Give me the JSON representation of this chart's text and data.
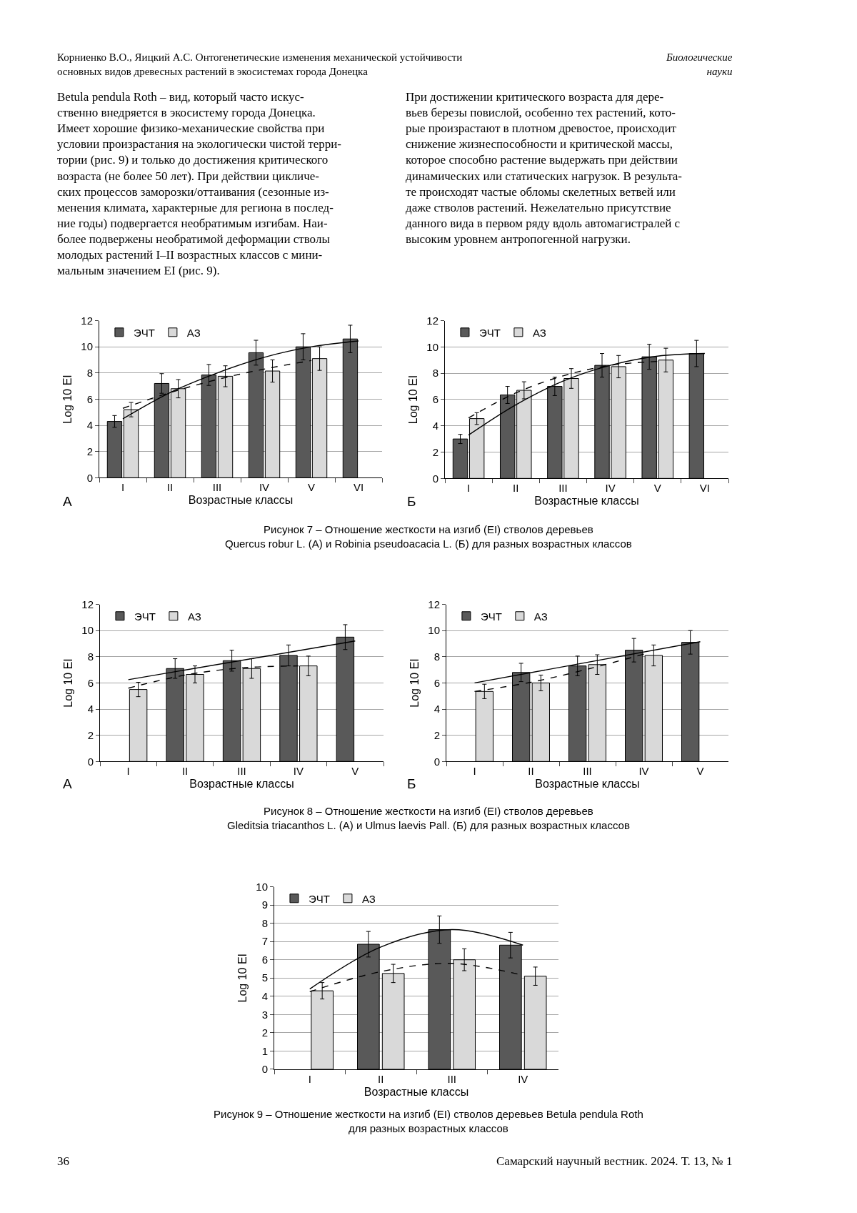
{
  "chart_data": [
    {
      "type": "bar",
      "categories": [
        "I",
        "II",
        "III",
        "IV",
        "V",
        "VI"
      ],
      "ylabel": "Log 10 EI",
      "xlabel": "Возрастные классы",
      "ylim": [
        0,
        12
      ],
      "yticks": [
        0,
        2,
        4,
        6,
        8,
        10,
        12
      ],
      "grid": "y",
      "legend": "top left",
      "series": [
        {
          "name": "ЭЧТ",
          "color": "#595959",
          "values": [
            4.3,
            7.2,
            7.85,
            9.55,
            10.0,
            10.6
          ],
          "errors": [
            0.45,
            0.75,
            0.8,
            0.95,
            1.0,
            1.05
          ]
        },
        {
          "name": "АЗ",
          "color": "#d9d9d9",
          "values": [
            5.2,
            6.8,
            7.75,
            8.15,
            9.1,
            null
          ],
          "errors": [
            0.55,
            0.7,
            0.8,
            0.85,
            0.9,
            null
          ]
        },
        {
          "type": "line",
          "color": "#000000",
          "line_style": "solid",
          "x": [
            "I",
            "II",
            "III",
            "IV",
            "V",
            "VI"
          ],
          "values": [
            4.5,
            6.5,
            8.0,
            9.2,
            10.0,
            10.45
          ]
        },
        {
          "type": "line",
          "color": "#000000",
          "line_style": "dashed",
          "x": [
            "I",
            "II",
            "III",
            "IV",
            "V"
          ],
          "values": [
            5.3,
            6.5,
            7.5,
            8.3,
            8.95
          ]
        }
      ],
      "annotations": [
        "Корниенко В.О., Яицкий А.С. Онтогенетические изменения механической устойчивости\nосновных видов древесных растений в экосистемах города Донецка",
        "Биологические\nнауки",
        "Betula pendula Roth – вид, который часто искус-\nственно внедряется в экосистему города Донецка.\nИмеет хорошие физико-механические свойства при\nусловии произрастания на экологически чистой терри-\nтории (рис. 9) и только до достижения критического\nвозраста (не более 50 лет). При действии цикличе-\nских процессов заморозки/оттаивания (сезонные из-\nменения климата, характерные для региона в послед-\nние годы) подвергается необратимым изгибам. Наи-\nболее подвержены необратимой деформации стволы\nмолодых растений I–II возрастных классов с мини-\nмальным значением EI (рис. 9).",
        "При достижении критического возраста для дере-\nвьев березы повислой, особенно тех растений, кото-\nрые произрастают в плотном древостое, происходит\nснижение жизнеспособности и критической массы,\nкоторое способно растение выдержать при действии\nдинамических или статических нагрузок. В результа-\nте происходят частые обломы скелетных ветвей или\nдаже стволов растений. Нежелательно присутствие\nданного вида в первом ряду вдоль автомагистралей с\nвысоким уровнем антропогенной нагрузки.",
        "А",
        "Рисунок 7 – Отношение жесткости на изгиб (EI) стволов деревьев\nQuercus robur L. (А) и Robinia pseudoacacia L. (Б) для разных возрастных классов"
      ]
    },
    {
      "type": "bar",
      "categories": [
        "I",
        "II",
        "III",
        "IV",
        "V",
        "VI"
      ],
      "ylabel": "Log 10 EI",
      "xlabel": "Возрастные классы",
      "ylim": [
        0,
        12
      ],
      "yticks": [
        0,
        2,
        4,
        6,
        8,
        10,
        12
      ],
      "grid": "y",
      "legend": "top left",
      "series": [
        {
          "name": "ЭЧТ",
          "color": "#595959",
          "values": [
            3.0,
            6.35,
            7.0,
            8.6,
            9.25,
            9.5
          ],
          "errors": [
            0.35,
            0.65,
            0.7,
            0.9,
            0.95,
            1.0
          ]
        },
        {
          "name": "АЗ",
          "color": "#d9d9d9",
          "values": [
            4.55,
            6.7,
            7.6,
            8.5,
            9.0,
            null
          ],
          "errors": [
            0.45,
            0.65,
            0.75,
            0.85,
            0.9,
            null
          ]
        },
        {
          "type": "line",
          "color": "#000000",
          "line_style": "solid",
          "x": [
            "I",
            "II",
            "III",
            "IV",
            "V",
            "VI"
          ],
          "values": [
            3.3,
            5.6,
            7.4,
            8.6,
            9.3,
            9.5
          ]
        },
        {
          "type": "line",
          "color": "#000000",
          "line_style": "dashed",
          "x": [
            "I",
            "II",
            "III",
            "IV",
            "V"
          ],
          "values": [
            4.6,
            6.5,
            7.8,
            8.6,
            8.9
          ]
        }
      ],
      "annotations": [
        "Б"
      ]
    },
    {
      "type": "bar",
      "categories": [
        "I",
        "II",
        "III",
        "IV",
        "V"
      ],
      "ylabel": "Log 10 EI",
      "xlabel": "Возрастные классы",
      "ylim": [
        0,
        12
      ],
      "yticks": [
        0,
        2,
        4,
        6,
        8,
        10,
        12
      ],
      "grid": "y",
      "legend": "top left",
      "series": [
        {
          "name": "ЭЧТ",
          "color": "#595959",
          "values": [
            null,
            7.1,
            7.7,
            8.1,
            9.5
          ],
          "errors": [
            null,
            0.75,
            0.8,
            0.8,
            0.95
          ]
        },
        {
          "name": "АЗ",
          "color": "#d9d9d9",
          "values": [
            5.5,
            6.65,
            7.1,
            7.3,
            null
          ],
          "errors": [
            0.55,
            0.65,
            0.75,
            0.75,
            null
          ]
        },
        {
          "type": "line",
          "color": "#000000",
          "line_style": "solid",
          "x": [
            "I",
            "V"
          ],
          "values": [
            6.25,
            9.2
          ]
        },
        {
          "type": "line",
          "color": "#000000",
          "line_style": "dashed",
          "x": [
            "I",
            "II",
            "III",
            "IV"
          ],
          "values": [
            5.6,
            6.6,
            7.15,
            7.3
          ]
        }
      ],
      "annotations": [
        "А",
        "Рисунок 8 – Отношение жесткости на изгиб (EI) стволов деревьев\nGleditsia triacanthos L. (А) и Ulmus laevis Pall. (Б) для разных возрастных классов"
      ]
    },
    {
      "type": "bar",
      "categories": [
        "I",
        "II",
        "III",
        "IV",
        "V"
      ],
      "ylabel": "Log 10 EI",
      "xlabel": "Возрастные классы",
      "ylim": [
        0,
        12
      ],
      "yticks": [
        0,
        2,
        4,
        6,
        8,
        10,
        12
      ],
      "grid": "y",
      "legend": "top left",
      "series": [
        {
          "name": "ЭЧТ",
          "color": "#595959",
          "values": [
            null,
            6.8,
            7.3,
            8.5,
            9.1
          ],
          "errors": [
            null,
            0.7,
            0.75,
            0.9,
            0.9
          ]
        },
        {
          "name": "АЗ",
          "color": "#d9d9d9",
          "values": [
            5.35,
            6.0,
            7.4,
            8.1,
            null
          ],
          "errors": [
            0.55,
            0.6,
            0.75,
            0.8,
            null
          ]
        },
        {
          "type": "line",
          "color": "#000000",
          "line_style": "solid",
          "x": [
            "I",
            "V"
          ],
          "values": [
            6.0,
            9.15
          ]
        },
        {
          "type": "line",
          "color": "#000000",
          "line_style": "dashed",
          "x": [
            "I",
            "II",
            "III",
            "IV"
          ],
          "values": [
            5.35,
            6.05,
            7.05,
            8.2
          ]
        }
      ],
      "annotations": [
        "Б"
      ]
    },
    {
      "type": "bar",
      "categories": [
        "I",
        "II",
        "III",
        "IV"
      ],
      "ylabel": "Log 10 EI",
      "xlabel": "Возрастные классы",
      "ylim": [
        0,
        10
      ],
      "yticks": [
        0,
        1,
        2,
        3,
        4,
        5,
        6,
        7,
        8,
        9,
        10
      ],
      "grid": "y",
      "legend": "top left",
      "series": [
        {
          "name": "ЭЧТ",
          "color": "#595959",
          "values": [
            null,
            6.85,
            7.65,
            6.8
          ],
          "errors": [
            null,
            0.7,
            0.75,
            0.7
          ]
        },
        {
          "name": "АЗ",
          "color": "#d9d9d9",
          "values": [
            4.3,
            5.25,
            6.0,
            5.1
          ],
          "errors": [
            0.45,
            0.5,
            0.6,
            0.5
          ]
        },
        {
          "type": "line",
          "color": "#000000",
          "line_style": "solid",
          "x": [
            "I",
            "II",
            "III",
            "IV"
          ],
          "values": [
            4.4,
            6.7,
            7.65,
            6.8
          ]
        },
        {
          "type": "line",
          "color": "#000000",
          "line_style": "dashed",
          "x": [
            "I",
            "II",
            "III",
            "IV"
          ],
          "values": [
            4.25,
            5.35,
            5.8,
            5.15
          ]
        }
      ],
      "annotations": [
        "Рисунок 9 – Отношение жесткости на изгиб (EI) стволов деревьев Betula pendula Roth\nдля разных возрастных классов",
        "36",
        "Самарский научный вестник. 2024. Т. 13, № 1"
      ]
    }
  ]
}
